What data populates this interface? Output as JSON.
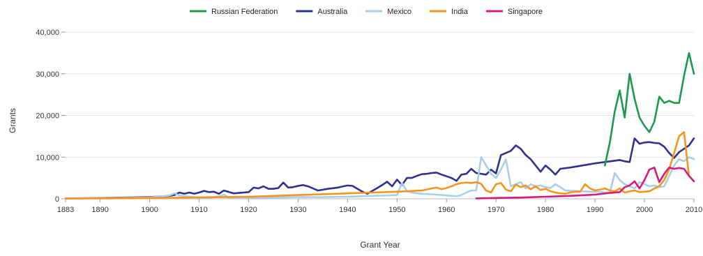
{
  "chart_data": {
    "type": "line",
    "title": "",
    "xlabel": "Grant Year",
    "ylabel": "Grants",
    "xlim": [
      1883,
      2010
    ],
    "ylim": [
      0,
      40000
    ],
    "x_ticks": [
      "1883",
      "1890",
      "1900",
      "1910",
      "1920",
      "1930",
      "1940",
      "1950",
      "1960",
      "1970",
      "1980",
      "1990",
      "2000",
      "2010"
    ],
    "y_ticks": [
      "0",
      "10,000",
      "20,000",
      "30,000",
      "40,000"
    ],
    "grid": true,
    "legend_position": "top",
    "series": [
      {
        "name": "Russian Federation",
        "color": "#1a9a4a",
        "x": [
          1992,
          1993,
          1994,
          1995,
          1996,
          1997,
          1998,
          1999,
          2000,
          2001,
          2002,
          2003,
          2004,
          2005,
          2006,
          2007,
          2008,
          2009,
          2010
        ],
        "y": [
          8000,
          13500,
          21000,
          26000,
          19500,
          30000,
          24000,
          19500,
          17500,
          16000,
          18500,
          24500,
          23000,
          23500,
          23000,
          23000,
          29500,
          35000,
          30000
        ]
      },
      {
        "name": "Australia",
        "color": "#2e3192",
        "x": [
          1883,
          1890,
          1900,
          1904,
          1905,
          1906,
          1907,
          1908,
          1909,
          1910,
          1911,
          1912,
          1913,
          1914,
          1915,
          1917,
          1919,
          1920,
          1921,
          1922,
          1923,
          1924,
          1925,
          1926,
          1927,
          1928,
          1929,
          1930,
          1931,
          1932,
          1933,
          1934,
          1936,
          1938,
          1940,
          1941,
          1942,
          1943,
          1944,
          1945,
          1946,
          1947,
          1948,
          1949,
          1950,
          1951,
          1952,
          1953,
          1954,
          1955,
          1956,
          1957,
          1958,
          1959,
          1960,
          1961,
          1962,
          1963,
          1964,
          1965,
          1966,
          1967,
          1968,
          1969,
          1970,
          1971,
          1972,
          1973,
          1974,
          1975,
          1976,
          1977,
          1978,
          1979,
          1980,
          1981,
          1982,
          1983,
          1985,
          1990,
          1995,
          1996,
          1997,
          1998,
          1999,
          2000,
          2001,
          2002,
          2003,
          2004,
          2005,
          2006,
          2007,
          2008,
          2009,
          2010
        ],
        "y": [
          100,
          200,
          400,
          700,
          900,
          1500,
          1200,
          1500,
          1200,
          1500,
          1900,
          1600,
          1700,
          1200,
          2000,
          1300,
          1500,
          1600,
          2700,
          2500,
          3000,
          2400,
          2400,
          2600,
          3900,
          2700,
          2800,
          3100,
          3300,
          3000,
          2500,
          2000,
          2400,
          2700,
          3200,
          3100,
          2400,
          1700,
          1200,
          1900,
          2600,
          3300,
          4100,
          3000,
          4600,
          3300,
          5000,
          5000,
          5500,
          5900,
          6000,
          6200,
          6300,
          5800,
          5400,
          5000,
          4300,
          5800,
          6000,
          7200,
          6200,
          6000,
          5800,
          7000,
          6100,
          10500,
          11000,
          11500,
          12800,
          12000,
          10500,
          9500,
          8000,
          6500,
          8000,
          7000,
          5800,
          7200,
          7500,
          8500,
          9300,
          9000,
          8800,
          14500,
          13200,
          13500,
          13600,
          13400,
          13300,
          12500,
          11000,
          9800,
          11200,
          12000,
          12800,
          14500
        ]
      },
      {
        "name": "Mexico",
        "color": "#a9cfe8",
        "x": [
          1883,
          1890,
          1900,
          1904,
          1905,
          1906,
          1908,
          1910,
          1912,
          1914,
          1915,
          1916,
          1918,
          1920,
          1922,
          1925,
          1930,
          1935,
          1940,
          1945,
          1948,
          1950,
          1951,
          1952,
          1953,
          1955,
          1958,
          1960,
          1962,
          1963,
          1964,
          1965,
          1966,
          1967,
          1968,
          1969,
          1970,
          1971,
          1972,
          1973,
          1974,
          1975,
          1976,
          1977,
          1978,
          1979,
          1980,
          1981,
          1982,
          1983,
          1984,
          1993,
          1994,
          1995,
          1996,
          1997,
          1998,
          1999,
          2000,
          2001,
          2002,
          2003,
          2004,
          2005,
          2006,
          2007,
          2008,
          2009,
          2010
        ],
        "y": [
          100,
          150,
          300,
          800,
          1300,
          800,
          500,
          300,
          200,
          600,
          1000,
          300,
          200,
          300,
          300,
          300,
          400,
          400,
          500,
          700,
          800,
          900,
          3800,
          1800,
          1500,
          1200,
          1000,
          800,
          600,
          900,
          1500,
          2000,
          2000,
          10000,
          8000,
          6000,
          5000,
          7000,
          9500,
          3000,
          3500,
          4000,
          2500,
          3500,
          3000,
          3200,
          2800,
          2600,
          3500,
          2800,
          2000,
          1500,
          6200,
          4500,
          3500,
          3000,
          2500,
          4000,
          3500,
          3000,
          3200,
          2800,
          3000,
          5500,
          8000,
          9500,
          9000,
          10000,
          9500
        ]
      },
      {
        "name": "India",
        "color": "#f7941d",
        "x": [
          1883,
          1890,
          1900,
          1905,
          1910,
          1915,
          1920,
          1925,
          1930,
          1935,
          1940,
          1945,
          1950,
          1955,
          1957,
          1958,
          1959,
          1960,
          1961,
          1962,
          1963,
          1964,
          1965,
          1966,
          1967,
          1968,
          1969,
          1970,
          1971,
          1972,
          1973,
          1974,
          1975,
          1976,
          1977,
          1978,
          1979,
          1980,
          1981,
          1982,
          1983,
          1984,
          1985,
          1986,
          1987,
          1988,
          1989,
          1990,
          1991,
          1992,
          1993,
          1994,
          1995,
          1996,
          1997,
          1998,
          1999,
          2000,
          2001,
          2002,
          2003,
          2004,
          2005,
          2006,
          2007,
          2008,
          2009
        ],
        "y": [
          50,
          100,
          200,
          250,
          350,
          400,
          500,
          700,
          900,
          1100,
          1300,
          1500,
          1700,
          2000,
          2500,
          2700,
          2300,
          2600,
          3000,
          3500,
          3800,
          3900,
          3800,
          4000,
          3600,
          2000,
          1500,
          3500,
          3800,
          2200,
          1800,
          3400,
          2800,
          3200,
          2300,
          3000,
          2100,
          2400,
          1800,
          1500,
          1300,
          1200,
          1500,
          1700,
          1700,
          3500,
          2500,
          2000,
          2200,
          2500,
          2000,
          1800,
          2500,
          1500,
          1800,
          2000,
          1600,
          1700,
          1800,
          2500,
          3000,
          4500,
          7000,
          11000,
          15000,
          16000,
          5500
        ]
      },
      {
        "name": "Singapore",
        "color": "#d6197c",
        "x": [
          1966,
          1970,
          1975,
          1980,
          1985,
          1990,
          1993,
          1995,
          1996,
          1997,
          1998,
          1999,
          2000,
          2001,
          2002,
          2003,
          2004,
          2005,
          2006,
          2007,
          2008,
          2009,
          2010
        ],
        "y": [
          100,
          200,
          300,
          500,
          700,
          1000,
          1400,
          1600,
          2800,
          3200,
          4200,
          2500,
          4500,
          7000,
          7500,
          4000,
          6000,
          7500,
          7200,
          7400,
          7200,
          5500,
          4200
        ]
      }
    ]
  }
}
